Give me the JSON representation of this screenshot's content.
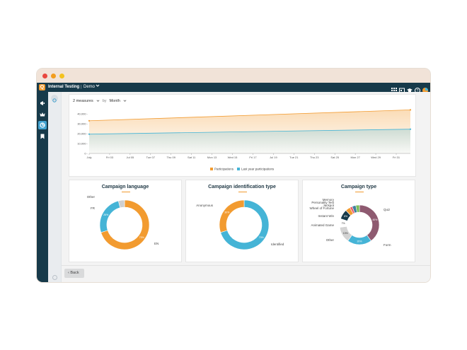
{
  "app": {
    "name": "Internal Testing",
    "separator": "|",
    "environment": "Demo"
  },
  "toolbar": {
    "measures": "2 measures",
    "by": "by",
    "period": "Month"
  },
  "footer": {
    "back_label": "Back"
  },
  "chart_data": [
    {
      "type": "area",
      "y_ticks": [
        "40,000 -",
        "30,000 -",
        "20,000 -",
        "10,000 -",
        "0 -"
      ],
      "ylim": [
        0,
        45000
      ],
      "categories": [
        "July",
        "Fri 03",
        "Jul 05",
        "Tue 07",
        "Thu 09",
        "Sat 11",
        "Mon 13",
        "Wed 15",
        "Fri 17",
        "Jul 19",
        "Tue 21",
        "Thu 23",
        "Sat 25",
        "Mon 27",
        "Wed 29",
        "Fri 31"
      ],
      "series": [
        {
          "name": "Participations",
          "color": "#f29b30",
          "start": 33000,
          "end": 44000
        },
        {
          "name": "Last year participations",
          "color": "#45b4d6",
          "start": 19500,
          "end": 24500
        }
      ],
      "legend_position": "bottom"
    },
    {
      "type": "pie",
      "title": "Campaign language",
      "slices": [
        {
          "label": "EN",
          "value": 70,
          "pct_label": "70%",
          "color": "#f29b30"
        },
        {
          "label": "FR",
          "value": 26,
          "pct_label": "26%",
          "color": "#45b4d6"
        },
        {
          "label": "Other",
          "value": 4,
          "pct_label": "",
          "color": "#cfcfcf"
        }
      ]
    },
    {
      "type": "pie",
      "title": "Campaign identification type",
      "slices": [
        {
          "label": "Identified",
          "value": 70,
          "pct_label": "70%",
          "color": "#45b4d6"
        },
        {
          "label": "Anonymous",
          "value": 30,
          "pct_label": "30%",
          "color": "#f29b30"
        }
      ]
    },
    {
      "type": "pie",
      "title": "Campaign type",
      "slices": [
        {
          "label": "Quiz",
          "value": 40,
          "pct_label": "40%",
          "color": "#8e5a70"
        },
        {
          "label": "Form",
          "value": 20,
          "pct_label": "20%",
          "color": "#45b4d6"
        },
        {
          "label": "Other",
          "value": 13,
          "pct_label": "13%",
          "color": "#d3d3d3"
        },
        {
          "label": "Animated Game",
          "value": 7,
          "pct_label": "7%",
          "color": "#ffffff"
        },
        {
          "label": "Instant Win",
          "value": 8,
          "pct_label": "8%",
          "color": "#173a4a"
        },
        {
          "label": "Wheel of Fortune",
          "value": 4,
          "pct_label": "",
          "color": "#f29b30"
        },
        {
          "label": "Jackpot",
          "value": 2,
          "pct_label": "",
          "color": "#e85c6a"
        },
        {
          "label": "Personality Test",
          "value": 3,
          "pct_label": "",
          "color": "#3e7ea0"
        },
        {
          "label": "Memory",
          "value": 3,
          "pct_label": "",
          "color": "#7bbf5a"
        }
      ]
    }
  ]
}
